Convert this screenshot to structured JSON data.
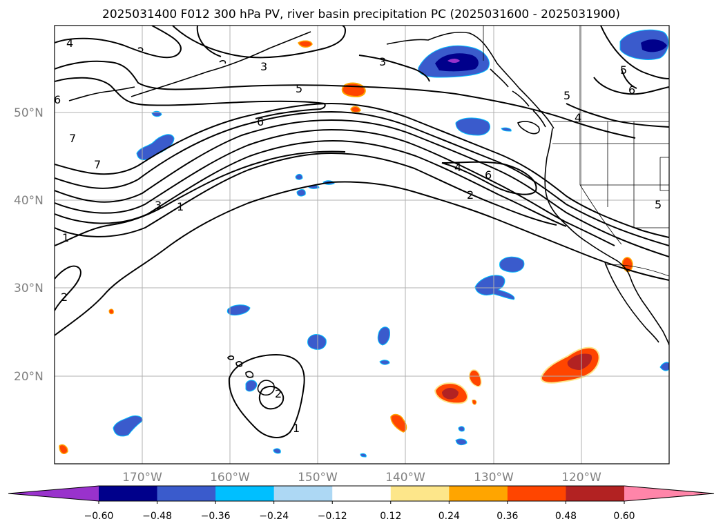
{
  "title": "2025031400 F012 300 hPa PV, river basin precipitation PC (2025031600 - 2025031900)",
  "map": {
    "projection": "PlateCarree",
    "lon_range": [
      -180,
      -110
    ],
    "lat_range": [
      10,
      60
    ],
    "gridlines": true,
    "lat_labels": [
      "50°N",
      "40°N",
      "30°N",
      "20°N"
    ],
    "lon_labels": [
      "170°W",
      "160°W",
      "150°W",
      "140°W",
      "130°W",
      "120°W"
    ]
  },
  "colorbar": {
    "orientation": "horizontal",
    "extend": "both",
    "ticks": [
      "−0.60",
      "−0.48",
      "−0.36",
      "−0.24",
      "−0.12",
      "0.12",
      "0.24",
      "0.36",
      "0.48",
      "0.60"
    ],
    "colors": [
      "#9932cc",
      "#00008b",
      "#3a5bcc",
      "#00bfff",
      "#add8f4",
      "#ffffff",
      "#fde68a",
      "#ffa500",
      "#ff4500",
      "#b22222",
      "#ff85a9"
    ]
  },
  "pv_contour_labels": [
    "4",
    "3",
    "3",
    "5",
    "5",
    "6",
    "6",
    "7",
    "7",
    "3",
    "1",
    "1",
    "2",
    "4",
    "6",
    "2",
    "5",
    "6",
    "5",
    "4",
    "2",
    "1"
  ]
}
